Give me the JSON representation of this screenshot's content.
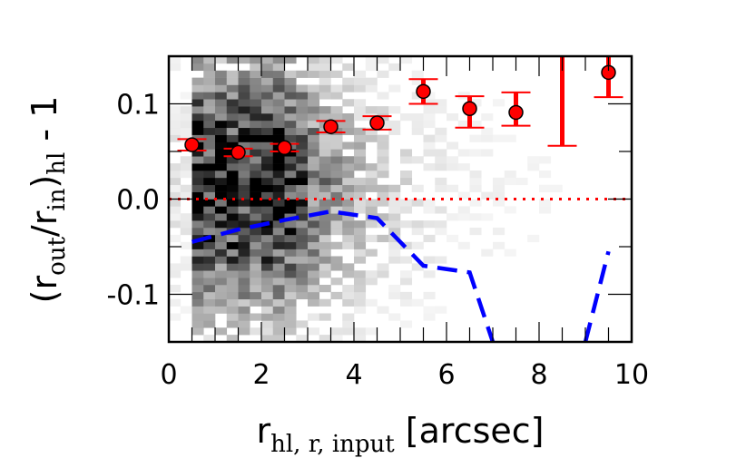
{
  "chart_data": {
    "type": "scatter",
    "title": "",
    "xlabel": {
      "base": "r",
      "subscript": "hl, r, input",
      "suffix": " [arcsec]"
    },
    "ylabel": {
      "open": "(r",
      "sub1": "out",
      "mid": "/r",
      "sub2": "in",
      "close": ")",
      "sub3": "hl",
      "suffix": " - 1"
    },
    "xlim": [
      0,
      10
    ],
    "ylim": [
      -0.15,
      0.15
    ],
    "xticks": [
      0,
      2,
      4,
      6,
      8,
      10
    ],
    "xtick_labels": [
      "0",
      "2",
      "4",
      "6",
      "8",
      "10"
    ],
    "yticks": [
      0.1,
      0.0,
      -0.1
    ],
    "ytick_labels": [
      "0.1",
      "0.0",
      "-0.1"
    ],
    "grid": false,
    "colors": {
      "points": "#ff0000",
      "errorbars": "#ff0000",
      "dashed_line": "#0000ff",
      "reference_line": "#ff0000"
    },
    "binned_points": {
      "x": [
        0.5,
        1.5,
        2.5,
        3.5,
        4.5,
        5.5,
        6.5,
        7.5,
        8.5,
        9.5
      ],
      "y": [
        0.057,
        0.049,
        0.054,
        0.076,
        0.08,
        0.113,
        0.095,
        0.091,
        null,
        0.133
      ],
      "err_low": [
        0.006,
        0.004,
        0.004,
        0.006,
        0.007,
        0.013,
        0.02,
        0.014,
        null,
        0.026
      ],
      "err_high": [
        0.006,
        0.004,
        0.004,
        0.006,
        0.007,
        0.013,
        0.013,
        0.021,
        null,
        0.017
      ]
    },
    "bar_at_8_5": {
      "x": 8.5,
      "y_low": 0.056,
      "y_high": 0.15
    },
    "dashed_line": {
      "x": [
        0.5,
        1.5,
        2.5,
        3.5,
        4.5,
        5.5,
        6.5,
        7.0,
        9.0,
        9.5
      ],
      "y": [
        -0.045,
        -0.032,
        -0.022,
        -0.013,
        -0.02,
        -0.07,
        -0.077,
        -0.15,
        -0.15,
        -0.055
      ]
    },
    "reference_line": {
      "y": 0.0,
      "style": "dotted"
    },
    "density_background": {
      "type": "heatmap",
      "colormap": "grayscale",
      "x_bin_width": 0.25,
      "y_bin_width": 0.0075
    }
  }
}
